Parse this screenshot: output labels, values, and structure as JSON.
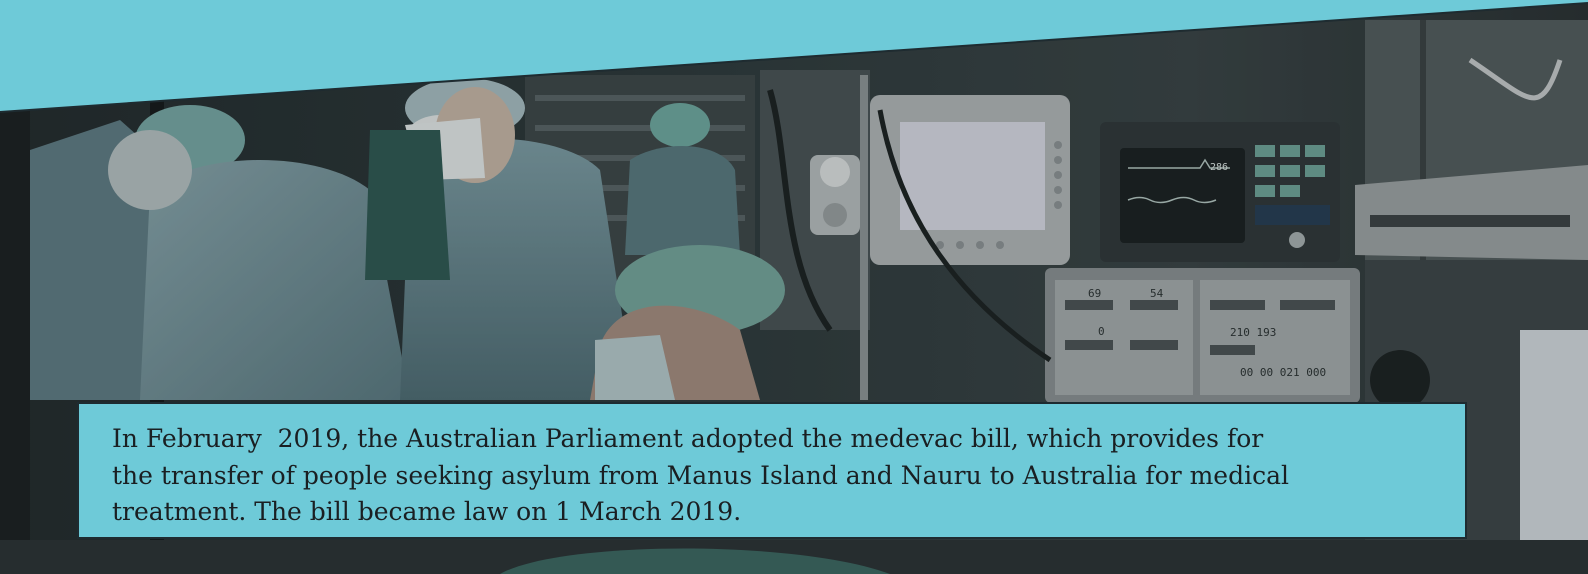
{
  "photo": {
    "icon": "operating-room-photo",
    "monitor_readouts": [
      "69",
      "54",
      "0",
      "210 193",
      "00 00 021 000",
      "286"
    ]
  },
  "colors": {
    "band": "#6ecad8",
    "caption_bg": "#6ecad8",
    "caption_border": "#1e2b30",
    "caption_text": "#1a1f22"
  },
  "caption": {
    "text": "In February  2019, the Australian Parliament adopted the medevac bill, which provides for\nthe transfer of people seeking asylum from Manus Island and Nauru to Australia for medical\ntreatment. The bill became law on 1 March 2019."
  }
}
